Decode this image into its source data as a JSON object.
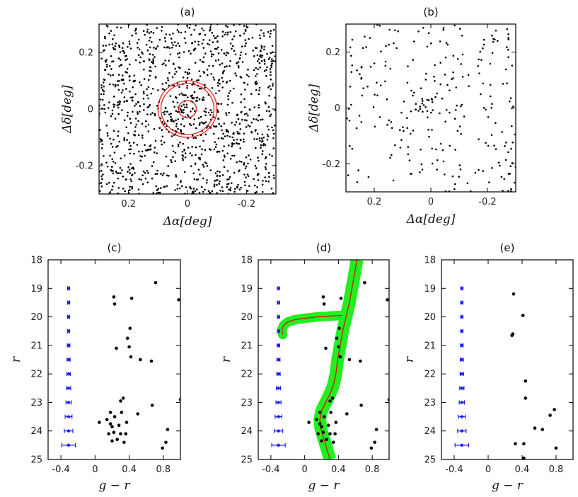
{
  "chart_data": [
    {
      "id": "a",
      "type": "scatter",
      "title": "(a)",
      "xlabel": "Δα[deg]",
      "ylabel": "Δδ[deg]",
      "xlim": [
        0.3,
        -0.3
      ],
      "ylim": [
        -0.3,
        0.3
      ],
      "xticks": [
        0.2,
        0,
        -0.2
      ],
      "xtick_labels": [
        "0.2",
        "0",
        "-0.2"
      ],
      "yticks": [
        0.2,
        0,
        -0.2
      ],
      "ytick_labels": [
        "0.2",
        "0",
        "-0.2"
      ],
      "field_stars": {
        "description": "uniform background field",
        "count": 1150
      },
      "cluster_excess": {
        "center": [
          0,
          0
        ],
        "count": 30,
        "spread_deg": 0.03
      },
      "circles": [
        {
          "center": [
            0,
            0
          ],
          "radius_deg": 0.1,
          "color": "#e02020"
        },
        {
          "center": [
            0,
            0
          ],
          "radius_deg": 0.09,
          "color": "#e02020"
        },
        {
          "center": [
            0,
            0
          ],
          "radius_deg": 0.03,
          "color": "#e02020"
        }
      ]
    },
    {
      "id": "b",
      "type": "scatter",
      "title": "(b)",
      "xlabel": "Δα[deg]",
      "ylabel": "Δδ[deg]",
      "xlim": [
        0.3,
        -0.3
      ],
      "ylim": [
        -0.3,
        0.3
      ],
      "xticks": [
        0.2,
        0,
        -0.2
      ],
      "xtick_labels": [
        "0.2",
        "0",
        "-0.2"
      ],
      "yticks": [
        0.2,
        0,
        -0.2
      ],
      "ytick_labels": [
        "0.2",
        "0",
        "-0.2"
      ],
      "field_stars": {
        "description": "filtered sparse field",
        "count": 250
      },
      "cluster_excess": {
        "center": [
          0,
          0
        ],
        "count": 14,
        "spread_deg": 0.03
      }
    },
    {
      "id": "c",
      "type": "scatter",
      "title": "(c)",
      "xlabel": "g − r",
      "ylabel": "r",
      "xlim": [
        -0.55,
        1.0
      ],
      "ylim": [
        25,
        18
      ],
      "xticks": [
        -0.4,
        0,
        0.4,
        0.8
      ],
      "xtick_labels": [
        "-0.4",
        "0",
        "0.4",
        "0.8"
      ],
      "yticks": [
        18,
        19,
        20,
        21,
        22,
        23,
        24,
        25
      ],
      "ytick_labels": [
        "18",
        "19",
        "20",
        "21",
        "22",
        "23",
        "24",
        "25"
      ],
      "points": [
        [
          0.71,
          18.8
        ],
        [
          0.22,
          19.3
        ],
        [
          0.43,
          19.35
        ],
        [
          0.98,
          19.4
        ],
        [
          0.23,
          19.55
        ],
        [
          0.41,
          20.4
        ],
        [
          0.38,
          20.75
        ],
        [
          0.4,
          21.05
        ],
        [
          0.25,
          21.1
        ],
        [
          0.42,
          21.4
        ],
        [
          0.53,
          21.5
        ],
        [
          0.66,
          21.55
        ],
        [
          0.33,
          22.85
        ],
        [
          0.3,
          22.95
        ],
        [
          1.0,
          22.9
        ],
        [
          0.67,
          23.1
        ],
        [
          0.18,
          23.35
        ],
        [
          0.31,
          23.35
        ],
        [
          0.5,
          23.4
        ],
        [
          0.23,
          23.5
        ],
        [
          0.14,
          23.6
        ],
        [
          0.05,
          23.7
        ],
        [
          0.18,
          23.75
        ],
        [
          0.37,
          23.7
        ],
        [
          0.28,
          23.8
        ],
        [
          0.2,
          23.85
        ],
        [
          0.22,
          24.05
        ],
        [
          0.16,
          24.1
        ],
        [
          0.3,
          24.1
        ],
        [
          0.36,
          24.1
        ],
        [
          0.85,
          23.95
        ],
        [
          0.2,
          24.35
        ],
        [
          0.26,
          24.3
        ],
        [
          0.34,
          24.4
        ],
        [
          0.83,
          24.4
        ],
        [
          0.79,
          24.6
        ]
      ],
      "error_bars": {
        "x": -0.31,
        "color": "#1c1cf0",
        "r": [
          19,
          19.5,
          20,
          20.5,
          21,
          21.5,
          22,
          22.5,
          23,
          23.5,
          24,
          24.5
        ],
        "xerr": [
          0.01,
          0.01,
          0.012,
          0.012,
          0.015,
          0.018,
          0.02,
          0.025,
          0.03,
          0.04,
          0.05,
          0.08
        ]
      }
    },
    {
      "id": "d",
      "type": "scatter",
      "title": "(d)",
      "xlabel": "g − r",
      "ylabel": "r",
      "xlim": [
        -0.55,
        1.0
      ],
      "ylim": [
        25,
        18
      ],
      "xticks": [
        -0.4,
        0,
        0.4,
        0.8
      ],
      "xtick_labels": [
        "-0.4",
        "0",
        "0.4",
        "0.8"
      ],
      "yticks": [
        18,
        19,
        20,
        21,
        22,
        23,
        24,
        25
      ],
      "ytick_labels": [
        "18",
        "19",
        "20",
        "21",
        "22",
        "23",
        "24",
        "25"
      ],
      "isochrone_color": "#cc2200",
      "envelope_color": "#22ee22",
      "isochrone_rgb": [
        [
          0.62,
          18.0
        ],
        [
          0.59,
          18.5
        ],
        [
          0.56,
          19.0
        ],
        [
          0.53,
          19.5
        ],
        [
          0.49,
          20.0
        ],
        [
          0.45,
          20.5
        ],
        [
          0.42,
          21.0
        ],
        [
          0.39,
          21.5
        ],
        [
          0.37,
          22.0
        ],
        [
          0.34,
          22.4
        ],
        [
          0.3,
          22.7
        ],
        [
          0.25,
          23.0
        ],
        [
          0.2,
          23.3
        ],
        [
          0.18,
          23.6
        ],
        [
          0.19,
          23.9
        ],
        [
          0.22,
          24.2
        ],
        [
          0.26,
          24.6
        ],
        [
          0.3,
          25.0
        ]
      ],
      "isochrone_hb": [
        [
          0.44,
          19.95
        ],
        [
          0.3,
          19.97
        ],
        [
          0.15,
          20.0
        ],
        [
          0.0,
          20.05
        ],
        [
          -0.12,
          20.1
        ],
        [
          -0.2,
          20.18
        ],
        [
          -0.25,
          20.3
        ],
        [
          -0.27,
          20.45
        ],
        [
          -0.26,
          20.62
        ]
      ],
      "envelope_width": 0.075,
      "points": [
        [
          0.71,
          18.8
        ],
        [
          0.22,
          19.3
        ],
        [
          0.43,
          19.35
        ],
        [
          0.98,
          19.4
        ],
        [
          0.23,
          19.55
        ],
        [
          0.41,
          20.4
        ],
        [
          0.38,
          20.75
        ],
        [
          0.4,
          21.05
        ],
        [
          0.25,
          21.1
        ],
        [
          0.42,
          21.4
        ],
        [
          0.53,
          21.5
        ],
        [
          0.66,
          21.55
        ],
        [
          0.33,
          22.85
        ],
        [
          0.3,
          22.95
        ],
        [
          1.0,
          22.9
        ],
        [
          0.67,
          23.1
        ],
        [
          0.18,
          23.35
        ],
        [
          0.31,
          23.35
        ],
        [
          0.5,
          23.4
        ],
        [
          0.23,
          23.5
        ],
        [
          0.14,
          23.6
        ],
        [
          0.05,
          23.7
        ],
        [
          0.18,
          23.75
        ],
        [
          0.37,
          23.7
        ],
        [
          0.28,
          23.8
        ],
        [
          0.2,
          23.85
        ],
        [
          0.22,
          24.05
        ],
        [
          0.16,
          24.1
        ],
        [
          0.3,
          24.1
        ],
        [
          0.36,
          24.1
        ],
        [
          0.85,
          23.95
        ],
        [
          0.2,
          24.35
        ],
        [
          0.26,
          24.3
        ],
        [
          0.34,
          24.4
        ],
        [
          0.83,
          24.4
        ],
        [
          0.79,
          24.6
        ]
      ],
      "error_bars": {
        "x": -0.31,
        "color": "#1c1cf0",
        "r": [
          19,
          19.5,
          20,
          20.5,
          21,
          21.5,
          22,
          22.5,
          23,
          23.5,
          24,
          24.5
        ],
        "xerr": [
          0.01,
          0.01,
          0.012,
          0.012,
          0.015,
          0.018,
          0.02,
          0.025,
          0.03,
          0.04,
          0.05,
          0.08
        ]
      }
    },
    {
      "id": "e",
      "type": "scatter",
      "title": "(e)",
      "xlabel": "g − r",
      "ylabel": "r",
      "xlim": [
        -0.55,
        1.0
      ],
      "ylim": [
        25,
        18
      ],
      "xticks": [
        -0.4,
        0,
        0.4,
        0.8
      ],
      "xtick_labels": [
        "-0.4",
        "0",
        "0.4",
        "0.8"
      ],
      "yticks": [
        18,
        19,
        20,
        21,
        22,
        23,
        24,
        25
      ],
      "ytick_labels": [
        "18",
        "19",
        "20",
        "21",
        "22",
        "23",
        "24",
        "25"
      ],
      "points": [
        [
          0.3,
          19.2
        ],
        [
          0.41,
          19.95
        ],
        [
          0.29,
          20.6
        ],
        [
          0.28,
          20.65
        ],
        [
          0.44,
          22.25
        ],
        [
          0.44,
          22.85
        ],
        [
          0.78,
          23.25
        ],
        [
          0.73,
          23.45
        ],
        [
          0.55,
          23.9
        ],
        [
          0.64,
          23.95
        ],
        [
          0.32,
          24.45
        ],
        [
          0.42,
          24.45
        ],
        [
          0.8,
          24.6
        ],
        [
          0.42,
          24.95
        ]
      ],
      "error_bars": {
        "x": -0.31,
        "color": "#1c1cf0",
        "r": [
          19,
          19.5,
          20,
          20.5,
          21,
          21.5,
          22,
          22.5,
          23,
          23.5,
          24,
          24.5
        ],
        "xerr": [
          0.01,
          0.01,
          0.012,
          0.012,
          0.015,
          0.018,
          0.02,
          0.025,
          0.03,
          0.04,
          0.05,
          0.08
        ]
      }
    }
  ]
}
